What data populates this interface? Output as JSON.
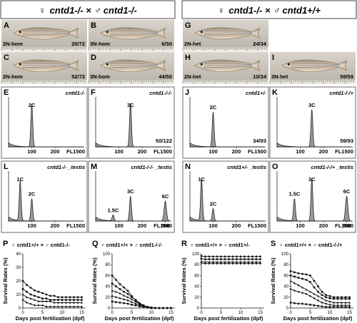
{
  "headers": {
    "left": {
      "female": "♀",
      "cross": "cntd1-/- × ♂ cntd1-/-"
    },
    "right": {
      "female": "♀",
      "cross": "cntd1-/- × ♂ cntd1+/+"
    }
  },
  "photo_panels": [
    {
      "letter": "A",
      "label": "2N-hom",
      "count": "20/72"
    },
    {
      "letter": "B",
      "label": "3N-hom",
      "count": "6/50"
    },
    {
      "letter": "C",
      "label": "2N-hom",
      "count": "52/72"
    },
    {
      "letter": "D",
      "label": "3N-hom",
      "count": "44/50"
    },
    {
      "letter": "G",
      "label": "2N-het",
      "count": "24/34"
    },
    {
      "letter": "H",
      "label": "2N-het",
      "count": "10/34"
    },
    {
      "letter": "I",
      "label": "3N-het",
      "count": "59/59"
    }
  ],
  "flow_panels": [
    {
      "letter": "E",
      "genotype": "cntd1-/-",
      "peaks": [
        "2C"
      ],
      "count": "",
      "axis": [
        "100",
        "200"
      ],
      "fl": "FL1500"
    },
    {
      "letter": "F",
      "genotype": "cntd1-/-/-",
      "peaks": [
        "3C"
      ],
      "count": "50/122",
      "axis": [
        "100",
        "200"
      ],
      "fl": "FL1500"
    },
    {
      "letter": "J",
      "genotype": "cntd1+/-",
      "peaks": [
        "2C"
      ],
      "count": "34/93",
      "axis": [
        "100",
        "200"
      ],
      "fl": "FL1500"
    },
    {
      "letter": "K",
      "genotype": "cntd1-/-/+",
      "peaks": [
        "3C"
      ],
      "count": "59/93",
      "axis": [
        "100",
        "200"
      ],
      "fl": "FL1500"
    },
    {
      "letter": "L",
      "genotype": "cntd1-/- _testis",
      "peaks": [
        "1C",
        "2C"
      ],
      "count": "",
      "axis": [
        "100",
        "200"
      ],
      "fl": "FL1500"
    },
    {
      "letter": "M",
      "genotype": "cntd1-/-/- _testis",
      "peaks": [
        "1.5C",
        "3C",
        "6C"
      ],
      "count": "",
      "axis": [
        "100",
        "200",
        "300"
      ],
      "fl": "FL1500"
    },
    {
      "letter": "N",
      "genotype": "cntd1+/- _testis",
      "peaks": [
        "1C",
        "2C"
      ],
      "count": "",
      "axis": [
        "100",
        "200"
      ],
      "fl": "FL1500"
    },
    {
      "letter": "O",
      "genotype": "cntd1-/-/+ _testis",
      "peaks": [
        "1.5C",
        "3C",
        "6C"
      ],
      "count": "",
      "axis": [
        "100",
        "200",
        "300"
      ],
      "fl": "FL1500"
    }
  ],
  "chart_data": [
    {
      "type": "line",
      "letter": "P",
      "title": "♀ cntd1+/+ × ♂ cntd1-/-",
      "ylabel": "Survival Rates (%)",
      "xlabel": "Days post fertilization (dpf)",
      "ylim": [
        0,
        40
      ],
      "yticks": [
        "0",
        "10",
        "20",
        "30",
        "40"
      ],
      "xlim": [
        0,
        16
      ],
      "xticks": [
        "0",
        "5",
        "10",
        "15"
      ],
      "x": [
        0,
        1,
        2,
        3,
        4,
        5,
        6,
        7,
        8,
        9,
        10,
        11,
        12,
        13,
        14,
        15
      ],
      "series": [
        {
          "values": [
            20,
            17,
            15,
            13,
            12,
            11,
            10,
            9,
            9,
            8,
            8,
            8,
            8,
            8,
            8,
            8
          ]
        },
        {
          "values": [
            14,
            12,
            10,
            9,
            8,
            7,
            7,
            6,
            6,
            6,
            6,
            6,
            6,
            6,
            6,
            6
          ]
        },
        {
          "values": [
            10,
            8,
            7,
            6,
            5,
            5,
            5,
            5,
            4,
            4,
            4,
            4,
            4,
            4,
            4,
            4
          ]
        },
        {
          "values": [
            6,
            4,
            3,
            2,
            2,
            2,
            1,
            1,
            1,
            1,
            1,
            1,
            1,
            1,
            1,
            1
          ]
        }
      ]
    },
    {
      "type": "line",
      "letter": "Q",
      "title": "♀ cntd1+/+ × ♂ cntd1-/-/-",
      "ylabel": "Survival Rates (%)",
      "xlabel": "Days post fertilization (dpf)",
      "ylim": [
        0,
        100
      ],
      "yticks": [
        "0",
        "20",
        "40",
        "60",
        "80",
        "100"
      ],
      "xlim": [
        0,
        16
      ],
      "xticks": [
        "0",
        "5",
        "10",
        "15"
      ],
      "x": [
        0,
        1,
        2,
        3,
        4,
        5,
        6,
        7,
        8,
        9,
        10,
        11,
        12,
        13,
        14,
        15
      ],
      "series": [
        {
          "values": [
            60,
            52,
            44,
            38,
            32,
            22,
            14,
            8,
            4,
            2,
            1,
            0,
            0,
            0,
            0,
            0
          ]
        },
        {
          "values": [
            45,
            40,
            35,
            30,
            26,
            20,
            15,
            9,
            5,
            2,
            1,
            0,
            0,
            0,
            0,
            0
          ]
        },
        {
          "values": [
            32,
            30,
            27,
            23,
            20,
            16,
            12,
            7,
            4,
            2,
            0,
            0,
            0,
            0,
            0,
            0
          ]
        },
        {
          "values": [
            22,
            20,
            18,
            16,
            14,
            11,
            8,
            5,
            3,
            1,
            0,
            0,
            0,
            0,
            0,
            0
          ]
        },
        {
          "values": [
            12,
            11,
            10,
            9,
            8,
            6,
            5,
            3,
            2,
            1,
            0,
            0,
            0,
            0,
            0,
            0
          ]
        }
      ]
    },
    {
      "type": "line",
      "letter": "R",
      "title": "♀ cntd1+/+ × ♂ cntd1+/-",
      "ylabel": "Survival Rates (%)",
      "xlabel": "Days post fertilization (dpf)",
      "ylim": [
        0,
        100
      ],
      "yticks": [
        "0",
        "20",
        "40",
        "60",
        "80",
        "100"
      ],
      "xlim": [
        0,
        16
      ],
      "xticks": [
        "0",
        "5",
        "10",
        "15"
      ],
      "x": [
        0,
        1,
        2,
        3,
        4,
        5,
        6,
        7,
        8,
        9,
        10,
        11,
        12,
        13,
        14,
        15
      ],
      "series": [
        {
          "values": [
            96,
            95,
            95,
            95,
            95,
            95,
            95,
            95,
            95,
            95,
            95,
            95,
            95,
            95,
            95,
            95
          ]
        },
        {
          "values": [
            91,
            90,
            90,
            90,
            90,
            90,
            90,
            90,
            90,
            90,
            90,
            90,
            90,
            90,
            90,
            90
          ]
        },
        {
          "values": [
            86,
            85,
            85,
            85,
            85,
            85,
            85,
            85,
            85,
            85,
            85,
            85,
            85,
            85,
            85,
            85
          ]
        },
        {
          "values": [
            83,
            82,
            82,
            82,
            82,
            82,
            82,
            82,
            82,
            82,
            82,
            82,
            82,
            82,
            82,
            82
          ]
        }
      ]
    },
    {
      "type": "line",
      "letter": "S",
      "title": "♀ cntd1+/+ × ♂ cntd1-/-/+",
      "ylabel": "Survival Rates (%)",
      "xlabel": "Days post fertilization (dpf)",
      "ylim": [
        0,
        100
      ],
      "yticks": [
        "0",
        "20",
        "40",
        "60",
        "80",
        "100"
      ],
      "xlim": [
        0,
        16
      ],
      "xticks": [
        "0",
        "5",
        "10",
        "15"
      ],
      "x": [
        0,
        1,
        2,
        3,
        4,
        5,
        6,
        7,
        8,
        9,
        10,
        11,
        12,
        13,
        14,
        15
      ],
      "series": [
        {
          "values": [
            68,
            66,
            64,
            63,
            62,
            60,
            50,
            40,
            30,
            24,
            22,
            20,
            20,
            20,
            20,
            20
          ]
        },
        {
          "values": [
            60,
            58,
            56,
            54,
            52,
            48,
            38,
            30,
            24,
            20,
            18,
            17,
            17,
            17,
            17,
            17
          ]
        },
        {
          "values": [
            50,
            46,
            42,
            38,
            34,
            30,
            26,
            22,
            18,
            14,
            12,
            10,
            10,
            10,
            10,
            10
          ]
        },
        {
          "values": [
            35,
            32,
            30,
            28,
            26,
            22,
            18,
            14,
            10,
            8,
            6,
            5,
            5,
            5,
            5,
            5
          ]
        },
        {
          "values": [
            10,
            9,
            8,
            8,
            7,
            6,
            5,
            4,
            3,
            2,
            2,
            2,
            2,
            2,
            2,
            2
          ]
        }
      ]
    }
  ]
}
